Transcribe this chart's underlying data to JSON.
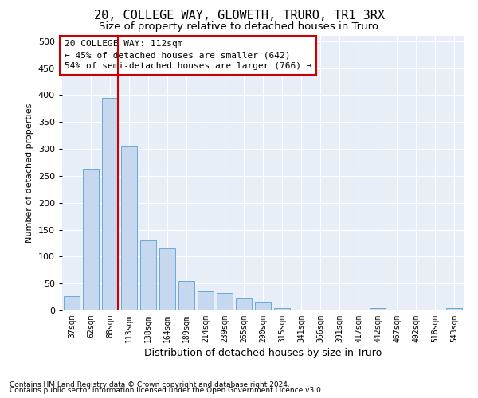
{
  "title": "20, COLLEGE WAY, GLOWETH, TRURO, TR1 3RX",
  "subtitle": "Size of property relative to detached houses in Truro",
  "xlabel": "Distribution of detached houses by size in Truro",
  "ylabel": "Number of detached properties",
  "footnote1": "Contains HM Land Registry data © Crown copyright and database right 2024.",
  "footnote2": "Contains public sector information licensed under the Open Government Licence v3.0.",
  "categories": [
    "37sqm",
    "62sqm",
    "88sqm",
    "113sqm",
    "138sqm",
    "164sqm",
    "189sqm",
    "214sqm",
    "239sqm",
    "265sqm",
    "290sqm",
    "315sqm",
    "341sqm",
    "366sqm",
    "391sqm",
    "417sqm",
    "442sqm",
    "467sqm",
    "492sqm",
    "518sqm",
    "543sqm"
  ],
  "values": [
    27,
    263,
    395,
    305,
    130,
    115,
    55,
    35,
    32,
    22,
    15,
    5,
    2,
    1,
    1,
    1,
    5,
    1,
    1,
    1,
    5
  ],
  "bar_color": "#c5d8f0",
  "bar_edge_color": "#6aaad4",
  "bg_color": "#e8eef8",
  "grid_color": "#ffffff",
  "vline_x_index": 2,
  "vline_color": "#cc0000",
  "annotation_text": "20 COLLEGE WAY: 112sqm\n← 45% of detached houses are smaller (642)\n54% of semi-detached houses are larger (766) →",
  "annotation_box_color": "#cc0000",
  "ylim": [
    0,
    510
  ],
  "yticks": [
    0,
    50,
    100,
    150,
    200,
    250,
    300,
    350,
    400,
    450,
    500
  ],
  "title_fontsize": 11,
  "subtitle_fontsize": 9.5,
  "annotation_fontsize": 8
}
